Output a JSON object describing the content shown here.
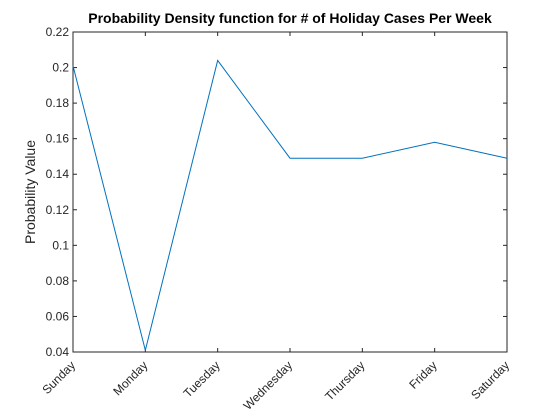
{
  "chart_data": {
    "type": "line",
    "title": "Probability Density function for # of Holiday Cases Per Week",
    "xlabel": "",
    "ylabel": "Probability Value",
    "categories": [
      "Sunday",
      "Monday",
      "Tuesday",
      "Wednesday",
      "Thursday",
      "Friday",
      "Saturday"
    ],
    "series": [
      {
        "values": [
          0.201,
          0.041,
          0.204,
          0.149,
          0.149,
          0.158,
          0.149
        ]
      }
    ],
    "ylim": [
      0.04,
      0.22
    ],
    "yticks": [
      "0.04",
      "0.06",
      "0.08",
      "0.1",
      "0.12",
      "0.14",
      "0.16",
      "0.18",
      "0.2",
      "0.22"
    ],
    "grid": false,
    "legend": "none",
    "colors": {
      "line": "#0072BD",
      "axes": "#262626",
      "background": "#ffffff"
    }
  }
}
